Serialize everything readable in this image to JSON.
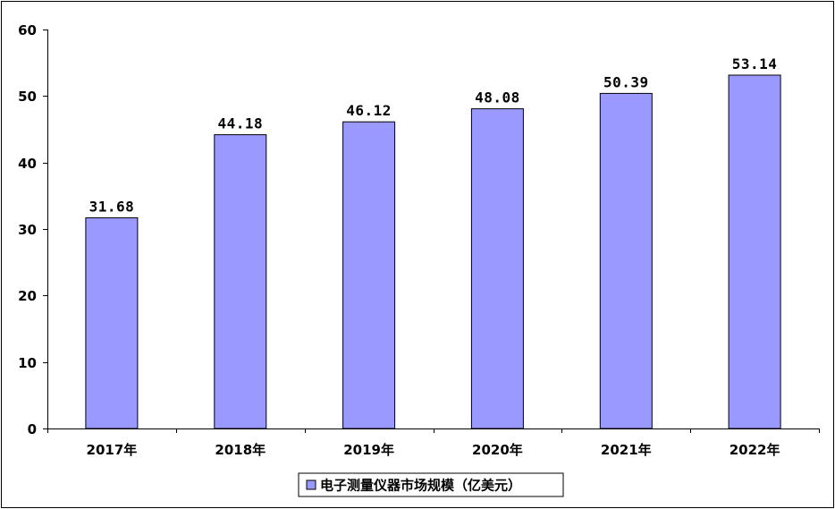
{
  "chart_data": {
    "type": "bar",
    "categories": [
      "2017年",
      "2018年",
      "2019年",
      "2020年",
      "2021年",
      "2022年"
    ],
    "series": [
      {
        "name": "电子测量仪器市场规模（亿美元）",
        "values": [
          31.68,
          44.18,
          46.12,
          48.08,
          50.39,
          53.14
        ],
        "data_labels": [
          "31.68",
          "44.18",
          "46.12",
          "48.08",
          "50.39",
          "53.14"
        ],
        "color": "#9999ff"
      }
    ],
    "ylim": [
      0,
      60
    ],
    "yticks": [
      0,
      10,
      20,
      30,
      40,
      50,
      60
    ],
    "ytick_labels": [
      "0",
      "10",
      "20",
      "30",
      "40",
      "50",
      "60"
    ],
    "grid": false,
    "legend_position": "bottom",
    "title": "",
    "xlabel": "",
    "ylabel": ""
  }
}
